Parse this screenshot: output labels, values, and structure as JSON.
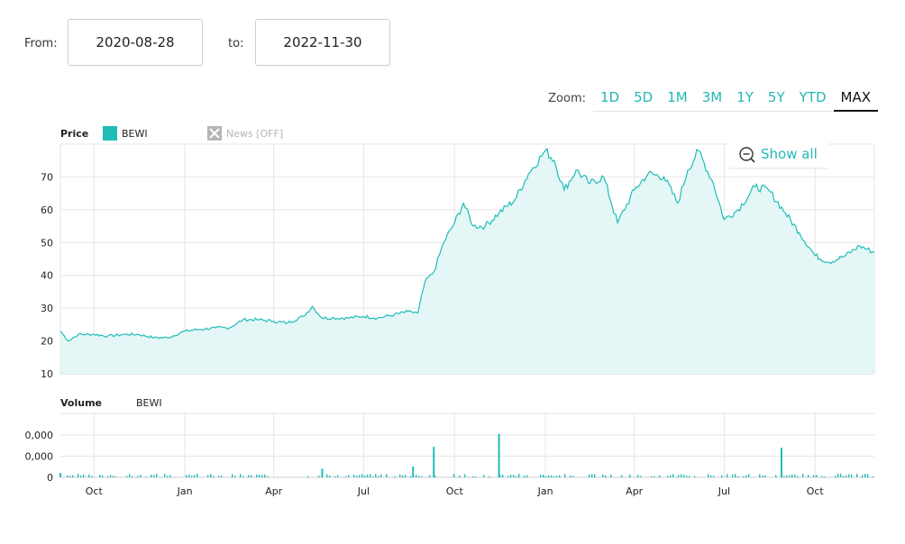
{
  "range": {
    "from_label": "From:",
    "from_value": "2020-08-28",
    "to_label": "to:",
    "to_value": "2022-11-30"
  },
  "zoom": {
    "label": "Zoom:",
    "options": [
      "1D",
      "5D",
      "1M",
      "3M",
      "1Y",
      "5Y",
      "YTD",
      "MAX"
    ],
    "active": "MAX"
  },
  "show_all_label": "Show all",
  "legend": {
    "price_title": "Price",
    "series_name": "BEWI",
    "news_label": "News [OFF]",
    "volume_title": "Volume",
    "volume_series_name": "BEWI"
  },
  "colors": {
    "series": "#1fbdb8",
    "area_fill": "#e4f6f6",
    "news_disabled": "#b5b5b5"
  },
  "chart_data": [
    {
      "type": "area",
      "title": "Price",
      "series": [
        {
          "name": "BEWI",
          "x": [
            "2020-08-28",
            "2020-09-05",
            "2020-09-15",
            "2020-10-01",
            "2020-10-15",
            "2020-11-01",
            "2020-11-15",
            "2020-12-01",
            "2020-12-15",
            "2021-01-01",
            "2021-01-15",
            "2021-02-01",
            "2021-02-15",
            "2021-03-01",
            "2021-03-15",
            "2021-04-01",
            "2021-04-15",
            "2021-05-01",
            "2021-05-10",
            "2021-05-20",
            "2021-06-01",
            "2021-06-15",
            "2021-07-01",
            "2021-07-15",
            "2021-08-01",
            "2021-08-15",
            "2021-08-25",
            "2021-09-01",
            "2021-09-10",
            "2021-09-20",
            "2021-10-01",
            "2021-10-10",
            "2021-10-20",
            "2021-11-01",
            "2021-11-15",
            "2021-12-01",
            "2021-12-15",
            "2022-01-01",
            "2022-01-10",
            "2022-01-20",
            "2022-02-01",
            "2022-02-15",
            "2022-03-01",
            "2022-03-15",
            "2022-04-01",
            "2022-04-15",
            "2022-05-01",
            "2022-05-15",
            "2022-05-25",
            "2022-06-05",
            "2022-06-20",
            "2022-07-01",
            "2022-07-15",
            "2022-08-01",
            "2022-08-15",
            "2022-09-01",
            "2022-09-15",
            "2022-10-01",
            "2022-10-15",
            "2022-11-01",
            "2022-11-15",
            "2022-11-30"
          ],
          "y": [
            23,
            20,
            22,
            22,
            21.5,
            22,
            22,
            21,
            21,
            23,
            23.5,
            24,
            24,
            26.5,
            26.5,
            26,
            25.5,
            27.5,
            30.5,
            27,
            27,
            27,
            27.5,
            27,
            28,
            29,
            28.5,
            38,
            41,
            50,
            56,
            62,
            55,
            55,
            59,
            63,
            71,
            78,
            75,
            66,
            72,
            68,
            70,
            56,
            66,
            71,
            70,
            62,
            72,
            78,
            68,
            57,
            60,
            67,
            66,
            59,
            53,
            46,
            44,
            46,
            49,
            47
          ]
        }
      ],
      "ylim": [
        10,
        80
      ],
      "yticks": [
        10,
        20,
        30,
        40,
        50,
        60,
        70
      ],
      "xtick_labels": [
        "Oct",
        "Jan",
        "Apr",
        "Jul",
        "Oct",
        "Jan",
        "Apr",
        "Jul",
        "Oct"
      ],
      "xtick_dates": [
        "2020-10-01",
        "2021-01-01",
        "2021-04-01",
        "2021-07-01",
        "2021-10-01",
        "2022-01-01",
        "2022-04-01",
        "2022-07-01",
        "2022-10-01"
      ],
      "grid": true
    },
    {
      "type": "bar",
      "title": "Volume",
      "series": [
        {
          "name": "BEWI",
          "x": [
            "2020-08-28",
            "2021-05-20",
            "2021-08-20",
            "2021-09-10",
            "2021-11-15",
            "2022-08-28"
          ],
          "y": [
            0.1,
            0.2,
            0.25,
            0.7,
            1.0,
            0.68
          ]
        }
      ],
      "ytick_labels": [
        "0",
        "0,000",
        "0,000"
      ],
      "grid": true
    }
  ]
}
